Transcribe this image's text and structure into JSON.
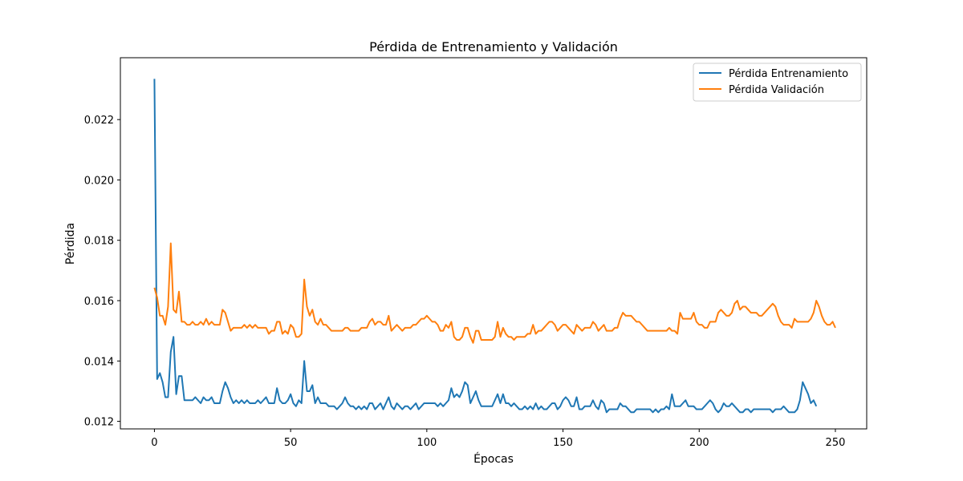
{
  "chart_data": {
    "type": "line",
    "title": "Pérdida de Entrenamiento y Validación",
    "xlabel": "Épocas",
    "ylabel": "Pérdida",
    "xlim": [
      -12.5,
      261.5
    ],
    "ylim": [
      0.01175,
      0.02405
    ],
    "x_ticks": [
      0,
      50,
      100,
      150,
      200,
      250
    ],
    "x_tick_labels": [
      "0",
      "50",
      "100",
      "150",
      "200",
      "250"
    ],
    "y_ticks": [
      0.012,
      0.014,
      0.016,
      0.018,
      0.02,
      0.022
    ],
    "y_tick_labels": [
      "0.012",
      "0.014",
      "0.016",
      "0.018",
      "0.020",
      "0.022"
    ],
    "grid": false,
    "legend_position": "top-right",
    "epochs": 250,
    "series": [
      {
        "name": "Pérdida Entrenamiento",
        "color": "#1f77b4",
        "values": [
          0.02335,
          0.0134,
          0.0136,
          0.0133,
          0.0128,
          0.0128,
          0.0143,
          0.0148,
          0.0129,
          0.0135,
          0.0135,
          0.0127,
          0.0127,
          0.0127,
          0.0127,
          0.0128,
          0.0127,
          0.0126,
          0.0128,
          0.0127,
          0.0127,
          0.0128,
          0.0126,
          0.0126,
          0.0126,
          0.013,
          0.0133,
          0.0131,
          0.0128,
          0.0126,
          0.0127,
          0.0126,
          0.0127,
          0.0126,
          0.0127,
          0.0126,
          0.0126,
          0.0126,
          0.0127,
          0.0126,
          0.0127,
          0.0128,
          0.0126,
          0.0126,
          0.0126,
          0.0131,
          0.0127,
          0.0126,
          0.0126,
          0.0127,
          0.0129,
          0.0126,
          0.0125,
          0.0127,
          0.0126,
          0.014,
          0.013,
          0.013,
          0.0132,
          0.0126,
          0.0128,
          0.0126,
          0.0126,
          0.0126,
          0.0125,
          0.0125,
          0.0125,
          0.0124,
          0.0125,
          0.0126,
          0.0128,
          0.0126,
          0.0125,
          0.0125,
          0.0124,
          0.0125,
          0.0124,
          0.0125,
          0.0124,
          0.0126,
          0.0126,
          0.0124,
          0.0125,
          0.0126,
          0.0124,
          0.0126,
          0.0128,
          0.0125,
          0.0124,
          0.0126,
          0.0125,
          0.0124,
          0.0125,
          0.0125,
          0.0124,
          0.0125,
          0.0126,
          0.0124,
          0.0125,
          0.0126,
          0.0126,
          0.0126,
          0.0126,
          0.0126,
          0.0125,
          0.0126,
          0.0125,
          0.0126,
          0.0127,
          0.0131,
          0.0128,
          0.0129,
          0.0128,
          0.013,
          0.0133,
          0.0132,
          0.0126,
          0.0128,
          0.013,
          0.0127,
          0.0125,
          0.0125,
          0.0125,
          0.0125,
          0.0125,
          0.0127,
          0.0129,
          0.0126,
          0.0129,
          0.0126,
          0.0126,
          0.0125,
          0.0126,
          0.0125,
          0.0124,
          0.0124,
          0.0125,
          0.0124,
          0.0125,
          0.0124,
          0.0126,
          0.0124,
          0.0125,
          0.0124,
          0.0124,
          0.0125,
          0.0126,
          0.0126,
          0.0124,
          0.0125,
          0.0127,
          0.0128,
          0.0127,
          0.0125,
          0.0125,
          0.0128,
          0.0124,
          0.0124,
          0.0125,
          0.0125,
          0.0125,
          0.0127,
          0.0125,
          0.0124,
          0.0127,
          0.0126,
          0.0123,
          0.0124,
          0.0124,
          0.0124,
          0.0124,
          0.0126,
          0.0125,
          0.0125,
          0.0124,
          0.0123,
          0.0123,
          0.0124,
          0.0124,
          0.0124,
          0.0124,
          0.0124,
          0.0124,
          0.0123,
          0.0124,
          0.0123,
          0.0124,
          0.0124,
          0.0125,
          0.0124,
          0.0129,
          0.0125,
          0.0125,
          0.0125,
          0.0126,
          0.0127,
          0.0125,
          0.0125,
          0.0125,
          0.0124,
          0.0124,
          0.0124,
          0.0125,
          0.0126,
          0.0127,
          0.0126,
          0.0124,
          0.0123,
          0.0124,
          0.0126,
          0.0125,
          0.0125,
          0.0126,
          0.0125,
          0.0124,
          0.0123,
          0.0123,
          0.0124,
          0.0124,
          0.0123,
          0.0124,
          0.0124,
          0.0124,
          0.0124,
          0.0124,
          0.0124,
          0.0124,
          0.0123,
          0.0124,
          0.0124,
          0.0124,
          0.0125,
          0.0124,
          0.0123,
          0.0123,
          0.0123,
          0.0124,
          0.0127,
          0.0133,
          0.0131,
          0.0129,
          0.0126,
          0.0127,
          0.0125
        ]
      },
      {
        "name": "Pérdida Validación",
        "color": "#ff7f0e",
        "values": [
          0.01643,
          0.0161,
          0.0155,
          0.0155,
          0.0152,
          0.0158,
          0.0179,
          0.0157,
          0.0156,
          0.0163,
          0.0153,
          0.0153,
          0.0152,
          0.0152,
          0.0153,
          0.0152,
          0.0152,
          0.0153,
          0.0152,
          0.0154,
          0.0152,
          0.0153,
          0.0152,
          0.0152,
          0.0152,
          0.0157,
          0.0156,
          0.0153,
          0.015,
          0.0151,
          0.0151,
          0.0151,
          0.0151,
          0.0152,
          0.0151,
          0.0152,
          0.0151,
          0.0152,
          0.0151,
          0.0151,
          0.0151,
          0.0151,
          0.0149,
          0.015,
          0.015,
          0.0153,
          0.0153,
          0.0149,
          0.015,
          0.0149,
          0.0152,
          0.0151,
          0.0148,
          0.0148,
          0.0149,
          0.0167,
          0.0158,
          0.0155,
          0.0157,
          0.0153,
          0.0152,
          0.0154,
          0.0152,
          0.0152,
          0.0151,
          0.015,
          0.015,
          0.015,
          0.015,
          0.015,
          0.0151,
          0.0151,
          0.015,
          0.015,
          0.015,
          0.015,
          0.0151,
          0.0151,
          0.0151,
          0.0153,
          0.0154,
          0.0152,
          0.0153,
          0.0153,
          0.0152,
          0.0152,
          0.0155,
          0.015,
          0.0151,
          0.0152,
          0.0151,
          0.015,
          0.0151,
          0.0151,
          0.0151,
          0.0152,
          0.0152,
          0.0153,
          0.0154,
          0.0154,
          0.0155,
          0.0154,
          0.0153,
          0.0153,
          0.0152,
          0.015,
          0.015,
          0.0152,
          0.0151,
          0.0153,
          0.0148,
          0.0147,
          0.0147,
          0.0148,
          0.0151,
          0.0151,
          0.0148,
          0.0146,
          0.015,
          0.015,
          0.0147,
          0.0147,
          0.0147,
          0.0147,
          0.0147,
          0.0148,
          0.0153,
          0.0148,
          0.0151,
          0.0149,
          0.0148,
          0.0148,
          0.0147,
          0.0148,
          0.0148,
          0.0148,
          0.0148,
          0.0149,
          0.0149,
          0.0152,
          0.0149,
          0.015,
          0.015,
          0.0151,
          0.0152,
          0.0153,
          0.0153,
          0.0152,
          0.015,
          0.0151,
          0.0152,
          0.0152,
          0.0151,
          0.015,
          0.0149,
          0.0152,
          0.0151,
          0.015,
          0.0151,
          0.0151,
          0.0151,
          0.0153,
          0.0152,
          0.015,
          0.0151,
          0.0152,
          0.015,
          0.015,
          0.015,
          0.0151,
          0.0151,
          0.0154,
          0.0156,
          0.0155,
          0.0155,
          0.0155,
          0.0154,
          0.0153,
          0.0153,
          0.0152,
          0.0151,
          0.015,
          0.015,
          0.015,
          0.015,
          0.015,
          0.015,
          0.015,
          0.015,
          0.0151,
          0.015,
          0.015,
          0.0149,
          0.0156,
          0.0154,
          0.0154,
          0.0154,
          0.0154,
          0.0156,
          0.0153,
          0.0152,
          0.0152,
          0.0151,
          0.0151,
          0.0153,
          0.0153,
          0.0153,
          0.0156,
          0.0157,
          0.0156,
          0.0155,
          0.0155,
          0.0156,
          0.0159,
          0.016,
          0.0157,
          0.0158,
          0.0158,
          0.0157,
          0.0156,
          0.0156,
          0.0156,
          0.0155,
          0.0155,
          0.0156,
          0.0157,
          0.0158,
          0.0159,
          0.0158,
          0.0155,
          0.0153,
          0.0152,
          0.0152,
          0.0152,
          0.0151,
          0.0154,
          0.0153,
          0.0153,
          0.0153,
          0.0153,
          0.0153,
          0.0154,
          0.0156,
          0.016,
          0.0158,
          0.0155,
          0.0153,
          0.0152,
          0.0152,
          0.0153,
          0.0151
        ]
      }
    ]
  }
}
